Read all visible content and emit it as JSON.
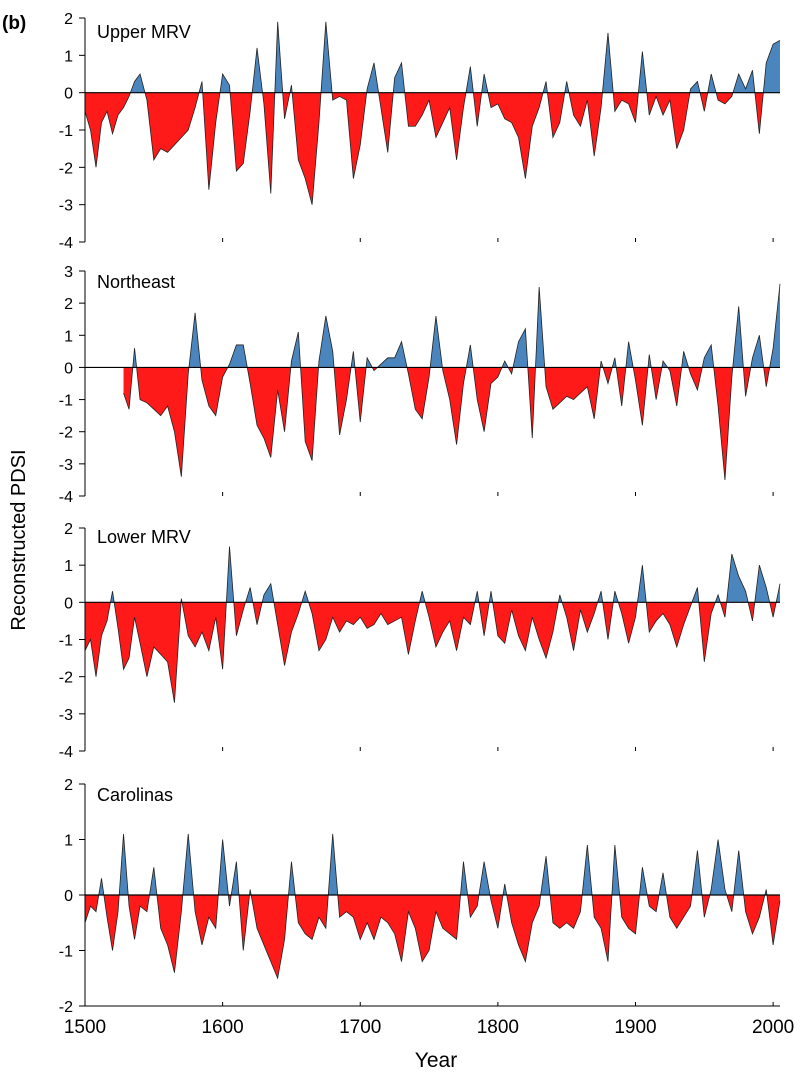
{
  "panel_letter": "(b)",
  "colors": {
    "positive": "#4a86bd",
    "negative": "#ff1a1a",
    "axis": "#000000",
    "zero_line": "#000000"
  },
  "chart_data": [
    {
      "type": "area",
      "title": "Upper MRV",
      "xlabel": "Year",
      "ylabel": "Reconstructed PDSI",
      "xlim": [
        1500,
        2005
      ],
      "ylim": [
        -4,
        2
      ],
      "y_ticks": [
        2,
        1,
        0,
        -1,
        -2,
        -3,
        -4
      ],
      "x_ticks": [
        1500,
        1600,
        1700,
        1800,
        1900,
        2000
      ],
      "grid": false,
      "fill_positive_color": "#4a86bd",
      "fill_negative_color": "#ff1a1a",
      "x": [
        1500,
        1504,
        1508,
        1512,
        1516,
        1520,
        1524,
        1528,
        1532,
        1536,
        1540,
        1545,
        1550,
        1555,
        1560,
        1565,
        1570,
        1575,
        1580,
        1585,
        1590,
        1595,
        1600,
        1605,
        1610,
        1615,
        1620,
        1625,
        1630,
        1635,
        1640,
        1645,
        1650,
        1655,
        1660,
        1665,
        1670,
        1675,
        1680,
        1685,
        1690,
        1695,
        1700,
        1705,
        1710,
        1715,
        1720,
        1725,
        1730,
        1735,
        1740,
        1745,
        1750,
        1755,
        1760,
        1765,
        1770,
        1775,
        1780,
        1785,
        1790,
        1795,
        1800,
        1805,
        1810,
        1815,
        1820,
        1825,
        1830,
        1835,
        1840,
        1845,
        1850,
        1855,
        1860,
        1865,
        1870,
        1875,
        1880,
        1885,
        1890,
        1895,
        1900,
        1905,
        1910,
        1915,
        1920,
        1925,
        1930,
        1935,
        1940,
        1945,
        1950,
        1955,
        1960,
        1965,
        1970,
        1975,
        1980,
        1985,
        1990,
        1995,
        2000,
        2005
      ],
      "values": [
        -0.5,
        -1.0,
        -2.0,
        -0.8,
        -0.5,
        -1.1,
        -0.6,
        -0.4,
        -0.1,
        0.3,
        0.5,
        -0.2,
        -1.8,
        -1.5,
        -1.6,
        -1.4,
        -1.2,
        -1.0,
        -0.4,
        0.3,
        -2.6,
        -0.8,
        0.5,
        0.2,
        -2.1,
        -1.9,
        -0.5,
        1.2,
        -0.3,
        -2.7,
        1.9,
        -0.7,
        0.2,
        -1.8,
        -2.3,
        -3.0,
        -0.8,
        1.9,
        -0.2,
        -0.1,
        -0.2,
        -2.3,
        -1.4,
        0.1,
        0.8,
        -0.4,
        -1.6,
        0.4,
        0.8,
        -0.9,
        -0.9,
        -0.6,
        -0.2,
        -1.2,
        -0.8,
        -0.4,
        -1.8,
        -0.4,
        0.7,
        -0.9,
        0.5,
        -0.4,
        -0.3,
        -0.7,
        -0.8,
        -1.2,
        -2.3,
        -0.9,
        -0.4,
        0.3,
        -1.2,
        -0.8,
        0.3,
        -0.6,
        -0.9,
        -0.2,
        -1.7,
        -0.4,
        1.6,
        -0.5,
        -0.2,
        -0.3,
        -0.8,
        1.1,
        -0.6,
        -0.1,
        -0.6,
        -0.2,
        -1.5,
        -1.0,
        0.1,
        0.3,
        -0.5,
        0.5,
        -0.2,
        -0.3,
        -0.1,
        0.5,
        0.1,
        0.6,
        -1.1,
        0.8,
        1.3,
        1.4
      ]
    },
    {
      "type": "area",
      "title": "Northeast",
      "xlim": [
        1500,
        2005
      ],
      "ylim": [
        -4,
        3
      ],
      "y_ticks": [
        3,
        2,
        1,
        0,
        -1,
        -2,
        -3,
        -4
      ],
      "x_ticks": [
        1500,
        1600,
        1700,
        1800,
        1900,
        2000
      ],
      "grid": false,
      "x": [
        1528,
        1532,
        1536,
        1540,
        1545,
        1550,
        1555,
        1560,
        1565,
        1570,
        1575,
        1580,
        1585,
        1590,
        1595,
        1600,
        1605,
        1610,
        1615,
        1620,
        1625,
        1630,
        1635,
        1640,
        1645,
        1650,
        1655,
        1660,
        1665,
        1670,
        1675,
        1680,
        1685,
        1690,
        1695,
        1700,
        1705,
        1710,
        1715,
        1720,
        1725,
        1730,
        1735,
        1740,
        1745,
        1750,
        1755,
        1760,
        1765,
        1770,
        1775,
        1780,
        1785,
        1790,
        1795,
        1800,
        1805,
        1810,
        1815,
        1820,
        1825,
        1830,
        1835,
        1840,
        1845,
        1850,
        1855,
        1860,
        1865,
        1870,
        1875,
        1880,
        1885,
        1890,
        1895,
        1900,
        1905,
        1910,
        1915,
        1920,
        1925,
        1930,
        1935,
        1940,
        1945,
        1950,
        1955,
        1960,
        1965,
        1970,
        1975,
        1980,
        1985,
        1990,
        1995,
        2000,
        2005
      ],
      "values": [
        -0.8,
        -1.3,
        0.6,
        -1.0,
        -1.1,
        -1.3,
        -1.5,
        -1.2,
        -2.0,
        -3.4,
        -0.2,
        1.7,
        -0.4,
        -1.2,
        -1.5,
        -0.3,
        0.1,
        0.7,
        0.7,
        -0.5,
        -1.8,
        -2.2,
        -2.8,
        -0.7,
        -2.0,
        0.2,
        1.1,
        -2.3,
        -2.9,
        0.2,
        1.6,
        0.5,
        -2.1,
        -1.0,
        0.5,
        -1.7,
        0.3,
        -0.1,
        0.1,
        0.3,
        0.3,
        0.8,
        -0.2,
        -1.3,
        -1.6,
        -0.3,
        1.6,
        -0.1,
        -1.0,
        -2.4,
        -0.5,
        0.7,
        -1.0,
        -2.0,
        -0.5,
        -0.3,
        0.2,
        -0.2,
        0.8,
        1.2,
        -2.2,
        2.5,
        -0.6,
        -1.3,
        -1.1,
        -0.9,
        -1.0,
        -0.8,
        -0.6,
        -1.6,
        0.2,
        -0.5,
        0.3,
        -1.2,
        0.8,
        -0.4,
        -1.8,
        0.4,
        -1.0,
        0.2,
        -0.1,
        -1.2,
        0.5,
        -0.2,
        -0.7,
        0.3,
        0.7,
        -1.2,
        -3.5,
        -0.3,
        1.9,
        -0.9,
        0.3,
        1.0,
        -0.6,
        0.6,
        2.6
      ]
    },
    {
      "type": "area",
      "title": "Lower MRV",
      "xlim": [
        1500,
        2005
      ],
      "ylim": [
        -4,
        2
      ],
      "y_ticks": [
        2,
        1,
        0,
        -1,
        -2,
        -3,
        -4
      ],
      "x_ticks": [
        1500,
        1600,
        1700,
        1800,
        1900,
        2000
      ],
      "grid": false,
      "x": [
        1500,
        1504,
        1508,
        1512,
        1516,
        1520,
        1524,
        1528,
        1532,
        1536,
        1540,
        1545,
        1550,
        1555,
        1560,
        1565,
        1570,
        1575,
        1580,
        1585,
        1590,
        1595,
        1600,
        1605,
        1610,
        1615,
        1620,
        1625,
        1630,
        1635,
        1640,
        1645,
        1650,
        1655,
        1660,
        1665,
        1670,
        1675,
        1680,
        1685,
        1690,
        1695,
        1700,
        1705,
        1710,
        1715,
        1720,
        1725,
        1730,
        1735,
        1740,
        1745,
        1750,
        1755,
        1760,
        1765,
        1770,
        1775,
        1780,
        1785,
        1790,
        1795,
        1800,
        1805,
        1810,
        1815,
        1820,
        1825,
        1830,
        1835,
        1840,
        1845,
        1850,
        1855,
        1860,
        1865,
        1870,
        1875,
        1880,
        1885,
        1890,
        1895,
        1900,
        1905,
        1910,
        1915,
        1920,
        1925,
        1930,
        1935,
        1940,
        1945,
        1950,
        1955,
        1960,
        1965,
        1970,
        1975,
        1980,
        1985,
        1990,
        1995,
        2000,
        2005
      ],
      "values": [
        -1.3,
        -1.0,
        -2.0,
        -0.9,
        -0.5,
        0.3,
        -0.7,
        -1.8,
        -1.5,
        -0.4,
        -1.1,
        -2.0,
        -1.2,
        -1.4,
        -1.6,
        -2.7,
        0.1,
        -0.9,
        -1.2,
        -0.8,
        -1.3,
        -0.4,
        -1.8,
        1.5,
        -0.9,
        -0.2,
        0.4,
        -0.6,
        0.2,
        0.5,
        -0.6,
        -1.7,
        -0.8,
        -0.3,
        0.3,
        -0.3,
        -1.3,
        -1.0,
        -0.4,
        -0.8,
        -0.5,
        -0.6,
        -0.4,
        -0.7,
        -0.6,
        -0.3,
        -0.6,
        -0.5,
        -0.4,
        -1.4,
        -0.5,
        0.3,
        -0.4,
        -1.2,
        -0.8,
        -0.5,
        -1.3,
        -0.4,
        -0.6,
        0.3,
        -0.9,
        0.3,
        -0.9,
        -1.1,
        -0.2,
        -0.9,
        -1.3,
        -0.4,
        -1.0,
        -1.5,
        -0.8,
        0.2,
        -0.4,
        -1.3,
        -0.2,
        -0.8,
        -0.3,
        0.3,
        -1.0,
        0.3,
        -0.3,
        -1.1,
        -0.4,
        1.0,
        -0.8,
        -0.5,
        -0.3,
        -0.6,
        -1.2,
        -0.6,
        -0.1,
        0.4,
        -1.6,
        -0.3,
        0.2,
        -0.4,
        1.3,
        0.7,
        0.3,
        -0.5,
        1.0,
        0.4,
        -0.4,
        0.5
      ]
    },
    {
      "type": "area",
      "title": "Carolinas",
      "xlim": [
        1500,
        2005
      ],
      "ylim": [
        -2,
        2
      ],
      "y_ticks": [
        2,
        1,
        0,
        -1,
        -2
      ],
      "x_ticks": [
        1500,
        1600,
        1700,
        1800,
        1900,
        2000
      ],
      "grid": false,
      "x": [
        1500,
        1504,
        1508,
        1512,
        1516,
        1520,
        1524,
        1528,
        1532,
        1536,
        1540,
        1545,
        1550,
        1555,
        1560,
        1565,
        1570,
        1575,
        1580,
        1585,
        1590,
        1595,
        1600,
        1605,
        1610,
        1615,
        1620,
        1625,
        1630,
        1635,
        1640,
        1645,
        1650,
        1655,
        1660,
        1665,
        1670,
        1675,
        1680,
        1685,
        1690,
        1695,
        1700,
        1705,
        1710,
        1715,
        1720,
        1725,
        1730,
        1735,
        1740,
        1745,
        1750,
        1755,
        1760,
        1765,
        1770,
        1775,
        1780,
        1785,
        1790,
        1795,
        1800,
        1805,
        1810,
        1815,
        1820,
        1825,
        1830,
        1835,
        1840,
        1845,
        1850,
        1855,
        1860,
        1865,
        1870,
        1875,
        1880,
        1885,
        1890,
        1895,
        1900,
        1905,
        1910,
        1915,
        1920,
        1925,
        1930,
        1935,
        1940,
        1945,
        1950,
        1955,
        1960,
        1965,
        1970,
        1975,
        1980,
        1985,
        1990,
        1995,
        2000,
        2005
      ],
      "values": [
        -0.5,
        -0.2,
        -0.3,
        0.3,
        -0.4,
        -1.0,
        -0.3,
        1.1,
        -0.2,
        -0.8,
        -0.2,
        -0.3,
        0.5,
        -0.6,
        -0.9,
        -1.4,
        -0.3,
        1.1,
        -0.3,
        -0.9,
        -0.4,
        -0.6,
        1.0,
        -0.2,
        0.6,
        -1.0,
        0.1,
        -0.6,
        -0.9,
        -1.2,
        -1.5,
        -0.8,
        0.6,
        -0.5,
        -0.7,
        -0.8,
        -0.4,
        -0.6,
        1.1,
        -0.4,
        -0.3,
        -0.4,
        -0.8,
        -0.5,
        -0.8,
        -0.4,
        -0.5,
        -0.7,
        -1.2,
        -0.3,
        -0.6,
        -1.2,
        -1.0,
        -0.3,
        -0.6,
        -0.7,
        -0.8,
        0.6,
        -0.4,
        -0.2,
        0.6,
        -0.1,
        -0.6,
        0.2,
        -0.5,
        -0.9,
        -1.2,
        -0.5,
        -0.2,
        0.7,
        -0.5,
        -0.6,
        -0.5,
        -0.6,
        -0.3,
        0.9,
        -0.4,
        -0.6,
        -1.2,
        0.9,
        -0.4,
        -0.6,
        -0.7,
        0.5,
        -0.2,
        -0.3,
        0.4,
        -0.4,
        -0.6,
        -0.4,
        -0.2,
        0.8,
        -0.4,
        0.1,
        1.0,
        0.1,
        -0.3,
        0.8,
        -0.3,
        -0.7,
        -0.4,
        0.1,
        -0.9,
        -0.1
      ]
    }
  ]
}
